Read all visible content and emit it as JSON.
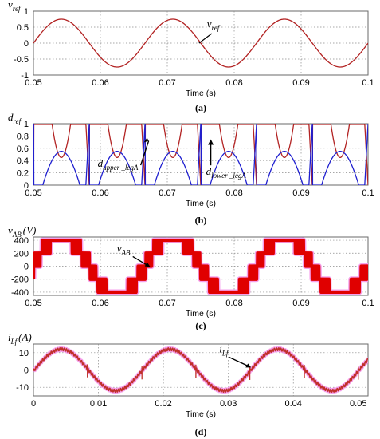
{
  "colors": {
    "red_trace": "#b22222",
    "blue_trace": "#1f1fcf",
    "pwm_fill": "#e00000",
    "pwm_halo": "#f5a0ec",
    "sine_red": "#c0302a",
    "grid": "#8a8a8a",
    "frame": "#6a6a6a"
  },
  "chart_data": [
    {
      "type": "line",
      "panel_label": "(a)",
      "ylabel": {
        "main": "v",
        "sub": "ref",
        "unit": ""
      },
      "xlabel": "Time (s)",
      "xlim": [
        0.05,
        0.1
      ],
      "ylim": [
        -1,
        1
      ],
      "xticks": [
        "0.05",
        "0.06",
        "0.07",
        "0.08",
        "0.09",
        "0.1"
      ],
      "yticks": [
        "1",
        "0.5",
        "0",
        "-0.5",
        "-1"
      ],
      "grid": true,
      "series": [
        {
          "name": "v_ref",
          "color": "#b22222",
          "amplitude": 0.75,
          "frequency_hz": 60,
          "waveform": "sine"
        }
      ],
      "annotations": [
        {
          "main": "v",
          "sub": "ref",
          "at_x": 0.0745,
          "at_y": -0.05
        }
      ]
    },
    {
      "type": "line",
      "panel_label": "(b)",
      "ylabel": {
        "main": "d",
        "sub": "ref",
        "unit": ""
      },
      "xlabel": "Time (s)",
      "xlim": [
        0.05,
        0.1
      ],
      "ylim": [
        0,
        1
      ],
      "xticks": [
        "0.05",
        "0.06",
        "0.07",
        "0.08",
        "0.09",
        "0.1"
      ],
      "yticks": [
        "1",
        "0.8",
        "0.6",
        "0.4",
        "0.2",
        "0"
      ],
      "grid": true,
      "series": [
        {
          "name": "d_upper_legA",
          "color": "#b22222",
          "description": "1 for most of each half-cycle, dipping to about 0.45 at mid; resets at x = 0.0583, 0.0667, 0.075, 0.0833, 0.0917"
        },
        {
          "name": "d_lower_legA",
          "color": "#1f1fcf",
          "description": "0 for most of each half-cycle, rising to about 0.55 at mid; linear ramps near resets"
        }
      ],
      "annotations": [
        {
          "main": "d",
          "sub": "upper _legA",
          "at_x": 0.0665,
          "at_y": 0.35
        },
        {
          "main": "d",
          "sub": "lower _legA",
          "at_x": 0.0765,
          "at_y": 0.4
        }
      ]
    },
    {
      "type": "line",
      "panel_label": "(c)",
      "ylabel": {
        "main": "v",
        "sub": "AB",
        "unit": "(V)"
      },
      "xlabel": "Time (s)",
      "xlim": [
        0.05,
        0.1
      ],
      "ylim": [
        -450,
        450
      ],
      "xticks": [
        "0.05",
        "0.06",
        "0.07",
        "0.08",
        "0.09",
        "0.1"
      ],
      "yticks": [
        "400",
        "200",
        "0",
        "-200",
        "-400"
      ],
      "grid": true,
      "levels_V": [
        -400,
        -200,
        0,
        200,
        400
      ],
      "series": [
        {
          "name": "v_AB",
          "color": "#e00000",
          "frequency_hz": 60,
          "waveform": "five-level PWM staircase"
        }
      ],
      "annotations": [
        {
          "main": "v",
          "sub": "AB",
          "at_x": 0.0658,
          "at_y": 50
        }
      ]
    },
    {
      "type": "line",
      "panel_label": "(d)",
      "ylabel": {
        "main": "i",
        "sub": "Lf",
        "unit": "(A)"
      },
      "xlabel": "Time (s)",
      "xlim": [
        0,
        0.0515
      ],
      "ylim": [
        -15,
        15
      ],
      "xticks": [
        "0",
        "0.01",
        "0.02",
        "0.03",
        "0.04",
        "0.05"
      ],
      "xtick_values": [
        0,
        0.01,
        0.02,
        0.03,
        0.04,
        0.05
      ],
      "yticks": [
        "10",
        "0",
        "-10"
      ],
      "grid": true,
      "series": [
        {
          "name": "i_Lf",
          "color": "#c0302a",
          "amplitude": 12,
          "frequency_hz": 60,
          "waveform": "sine with ripple",
          "spikes_x": [
            0.0083,
            0.0167,
            0.025,
            0.0333,
            0.0417,
            0.05
          ]
        }
      ],
      "annotations": [
        {
          "main": "i",
          "sub": "Lf",
          "at_x": 0.034,
          "at_y": 1
        }
      ]
    }
  ]
}
